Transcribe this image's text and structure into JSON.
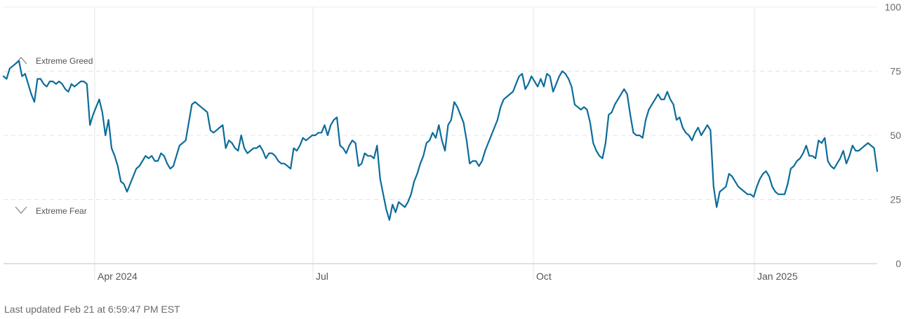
{
  "chart_data": {
    "type": "line",
    "y_axis": {
      "ticks": [
        0,
        25,
        50,
        75,
        100
      ],
      "ylim": [
        0,
        100
      ]
    },
    "x_axis": {
      "tick_labels": [
        "Apr 2024",
        "Jul",
        "Oct",
        "Jan 2025"
      ]
    },
    "zones": {
      "upper_label": "Extreme Greed",
      "lower_label": "Extreme Fear"
    },
    "grid": {
      "dashed_levels": [
        25,
        50,
        75
      ],
      "solid_levels": [
        100
      ]
    },
    "legend": "none",
    "series": [
      {
        "color": "#0b6d9a",
        "values": [
          73,
          72,
          76,
          77,
          78,
          79,
          73,
          74,
          70,
          66,
          63,
          72,
          72,
          70,
          69,
          71,
          71,
          70,
          71,
          70,
          68,
          67,
          70,
          69,
          70,
          71,
          71,
          70,
          54,
          58,
          61,
          64,
          59,
          50,
          56,
          45,
          42,
          38,
          32,
          31,
          28,
          31,
          34,
          37,
          38,
          40,
          42,
          41,
          42,
          40,
          40,
          43,
          42,
          39,
          37,
          38,
          42,
          46,
          47,
          48,
          55,
          62,
          63,
          62,
          61,
          60,
          59,
          52,
          51,
          52,
          53,
          54,
          45,
          48,
          47,
          45,
          44,
          50,
          45,
          43,
          44,
          45,
          45,
          46,
          44,
          41,
          43,
          43,
          42,
          40,
          39,
          39,
          38,
          37,
          45,
          44,
          46,
          49,
          48,
          49,
          50,
          50,
          51,
          51,
          54,
          50,
          54,
          56,
          57,
          46,
          45,
          43,
          46,
          48,
          47,
          38,
          39,
          43,
          42,
          42,
          41,
          46,
          33,
          27,
          21,
          17,
          23,
          20,
          24,
          23,
          22,
          24,
          27,
          32,
          35,
          39,
          42,
          47,
          48,
          51,
          49,
          54,
          48,
          44,
          54,
          56,
          63,
          61,
          58,
          55,
          48,
          39,
          40,
          40,
          38,
          40,
          44,
          47,
          50,
          53,
          56,
          61,
          64,
          65,
          66,
          67,
          70,
          73,
          74,
          68,
          70,
          73,
          71,
          69,
          72,
          69,
          74,
          73,
          67,
          70,
          73,
          75,
          74,
          72,
          69,
          62,
          61,
          60,
          61,
          60,
          55,
          47,
          44,
          42,
          41,
          47,
          58,
          59,
          62,
          64,
          66,
          68,
          66,
          58,
          51,
          50,
          50,
          49,
          56,
          60,
          62,
          64,
          66,
          64,
          64,
          67,
          64,
          62,
          56,
          57,
          53,
          51,
          50,
          48,
          51,
          53,
          50,
          52,
          54,
          52,
          30,
          22,
          28,
          29,
          30,
          35,
          34,
          32,
          30,
          29,
          28,
          27,
          27,
          26,
          30,
          33,
          35,
          36,
          34,
          30,
          28,
          27,
          27,
          27,
          31,
          37,
          38,
          40,
          41,
          43,
          46,
          42,
          42,
          41,
          48,
          47,
          49,
          40,
          38,
          37,
          39,
          41,
          44,
          39,
          42,
          46,
          44,
          44,
          45,
          46,
          47,
          46,
          45,
          36
        ]
      }
    ]
  },
  "footer": {
    "last_updated": "Last updated Feb 21 at 6:59:47 PM EST"
  }
}
